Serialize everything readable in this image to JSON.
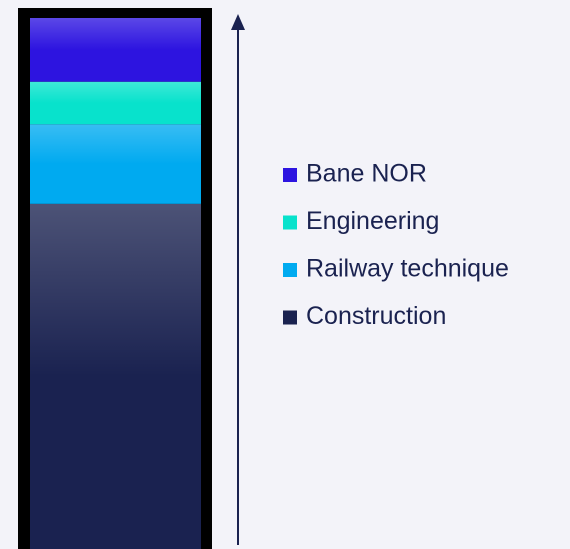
{
  "chart_data": {
    "type": "bar",
    "stacked": true,
    "ylim": [
      0,
      100
    ],
    "series": [
      {
        "name": "Bane NOR",
        "color": "#2d14e0",
        "values": [
          12
        ]
      },
      {
        "name": "Engineering",
        "color": "#08e2cc",
        "values": [
          8
        ]
      },
      {
        "name": "Railway technique",
        "color": "#00aaf0",
        "values": [
          15
        ]
      },
      {
        "name": "Construction",
        "color": "#1a2250",
        "values": [
          65
        ]
      }
    ]
  }
}
